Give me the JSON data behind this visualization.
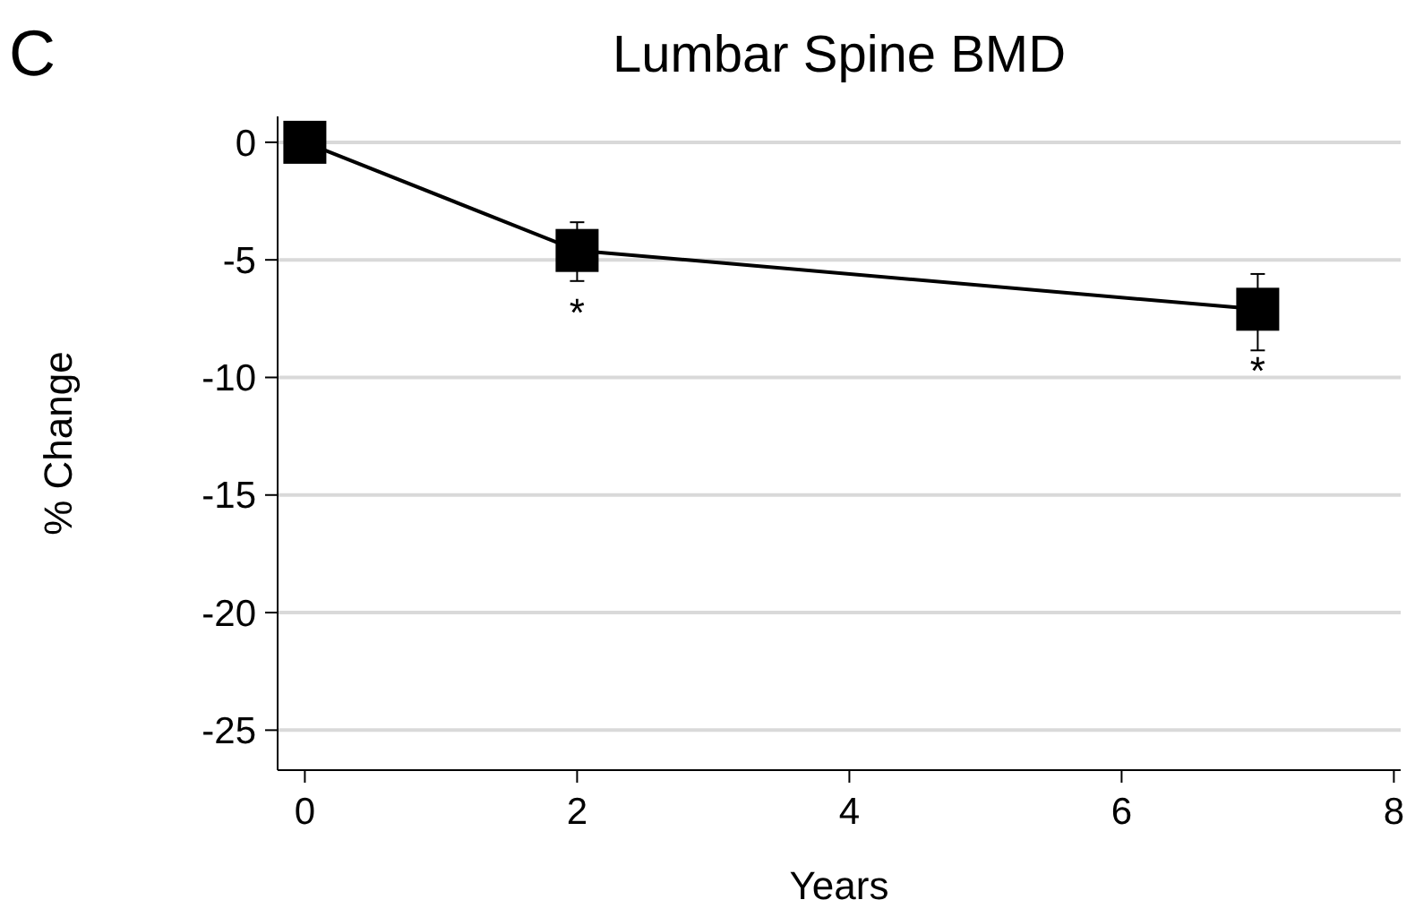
{
  "chart_data": {
    "type": "line",
    "title": "Lumbar Spine BMD",
    "xlabel": "Years",
    "ylabel": "% Change",
    "x": [
      0,
      2,
      7
    ],
    "series": [
      {
        "color": "#000000",
        "values": [
          0,
          -4.6,
          -7.1
        ],
        "errors": [
          null,
          [
            -5.9,
            -3.4
          ],
          [
            -8.85,
            -5.6
          ]
        ]
      }
    ],
    "xlim": [
      -0.2,
      8.05
    ],
    "xticks": [
      0,
      2,
      4,
      6,
      8
    ],
    "ylim": [
      -26.7,
      1.1
    ],
    "yticks": [
      0,
      -5,
      -10,
      -15,
      -20,
      -25
    ],
    "grid": "y",
    "marker": "square",
    "line_style": "solid",
    "annotations": [
      "C",
      {
        "text": "*",
        "x": 2,
        "y": -4.6
      },
      {
        "text": "*",
        "x": 7,
        "y": -7.1
      }
    ]
  }
}
